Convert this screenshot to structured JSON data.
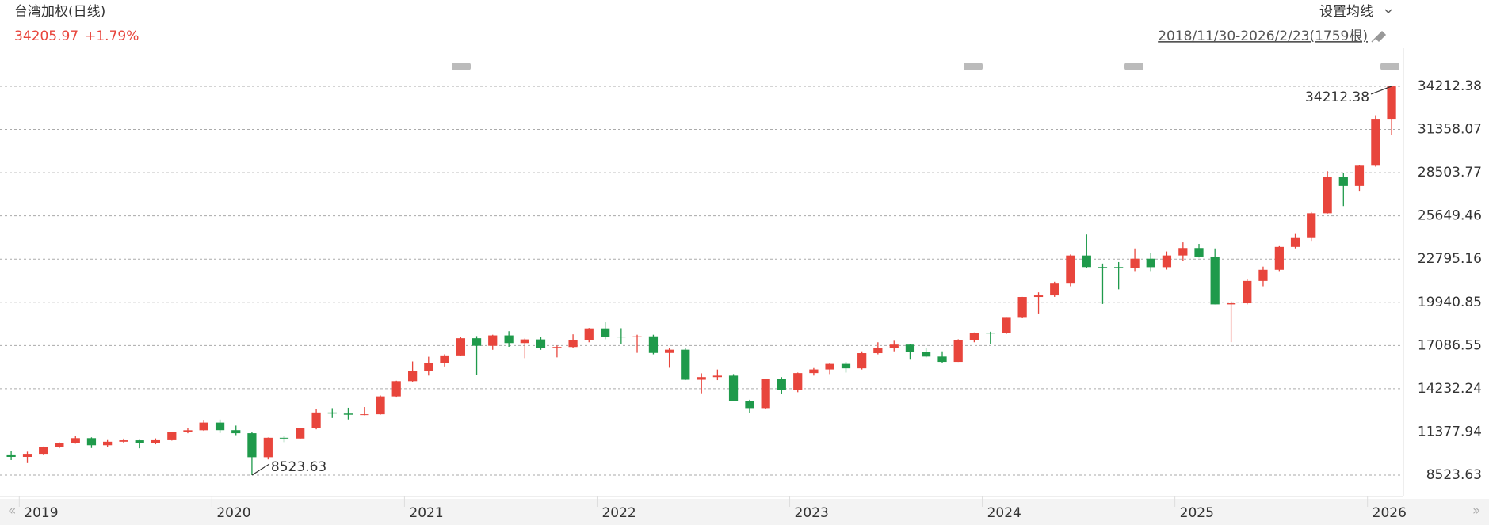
{
  "chart_data": {
    "type": "candlestick",
    "title": "台湾加权(日线)",
    "quote": {
      "price": 34205.97,
      "change": {
        "value": 1.79,
        "label": "+1.79%"
      }
    },
    "button": "设置均线",
    "range_label": "2018/11/30-2026/2/23(1759根)",
    "up_color": "#e8453c",
    "down_color": "#1f9a4b",
    "x": [
      2018.958,
      2019.042,
      2019.125,
      2019.208,
      2019.292,
      2019.375,
      2019.458,
      2019.542,
      2019.625,
      2019.708,
      2019.792,
      2019.875,
      2019.958,
      2020.042,
      2020.125,
      2020.208,
      2020.292,
      2020.375,
      2020.458,
      2020.542,
      2020.625,
      2020.708,
      2020.792,
      2020.875,
      2020.958,
      2021.042,
      2021.125,
      2021.208,
      2021.292,
      2021.375,
      2021.458,
      2021.542,
      2021.625,
      2021.708,
      2021.792,
      2021.875,
      2021.958,
      2022.042,
      2022.125,
      2022.208,
      2022.292,
      2022.375,
      2022.458,
      2022.542,
      2022.625,
      2022.708,
      2022.792,
      2022.875,
      2022.958,
      2023.042,
      2023.125,
      2023.208,
      2023.292,
      2023.375,
      2023.458,
      2023.542,
      2023.625,
      2023.708,
      2023.792,
      2023.875,
      2023.958,
      2024.042,
      2024.125,
      2024.208,
      2024.292,
      2024.375,
      2024.458,
      2024.542,
      2024.625,
      2024.708,
      2024.792,
      2024.875,
      2024.958,
      2025.042,
      2025.125,
      2025.208,
      2025.292,
      2025.375,
      2025.458,
      2025.542,
      2025.625,
      2025.708,
      2025.792,
      2025.875,
      2025.958,
      2026.042,
      2026.125
    ],
    "open": [
      9888,
      9727,
      9932,
      10389,
      10641,
      10967,
      10498,
      10730,
      10823,
      10618,
      10829,
      11358,
      11489,
      11997,
      11495,
      11292,
      9708,
      10992,
      10943,
      11621,
      12665,
      12592,
      12516,
      12546,
      13723,
      14733,
      15411,
      15953,
      16431,
      17567,
      17068,
      17755,
      17247,
      17490,
      16935,
      16987,
      17428,
      18219,
      17674,
      17652,
      17693,
      16593,
      16808,
      14826,
      15000,
      15096,
      13425,
      12950,
      14880,
      14138,
      15266,
      15504,
      15869,
      15579,
      16579,
      16916,
      17146,
      16634,
      16354,
      16002,
      17433,
      17931,
      17890,
      18966,
      20294,
      20397,
      21175,
      23033,
      22269,
      22268,
      22225,
      22821,
      22263,
      23035,
      23526,
      22964,
      19803,
      19875,
      21348,
      22085,
      23600,
      24233,
      25822,
      28234,
      27626,
      28964,
      32063
    ],
    "high": [
      10106,
      10075,
      10412,
      10690,
      11096,
      11021,
      10840,
      10936,
      10841,
      10951,
      11386,
      11616,
      12126,
      12197,
      11798,
      11390,
      11010,
      11095,
      11651,
      12891,
      12948,
      12974,
      13022,
      13782,
      14760,
      16031,
      16341,
      16505,
      17633,
      17709,
      17800,
      18034,
      17552,
      17661,
      17086,
      17827,
      18248,
      18619,
      18231,
      17800,
      17800,
      16900,
      16900,
      15250,
      15500,
      15200,
      13500,
      14900,
      15000,
      15300,
      15600,
      15900,
      16000,
      16700,
      17300,
      17400,
      17200,
      16900,
      16700,
      17500,
      17950,
      18000,
      18970,
      20300,
      20600,
      21300,
      23100,
      24417,
      22500,
      22600,
      23500,
      23200,
      23300,
      23900,
      23800,
      23500,
      20000,
      21500,
      22300,
      23650,
      24500,
      25900,
      28600,
      28500,
      29000,
      32300,
      34212.38
    ],
    "low": [
      9519,
      9319,
      9900,
      10300,
      10600,
      10314,
      10400,
      10645,
      10296,
      10560,
      10805,
      11290,
      11450,
      11310,
      11165,
      8523.63,
      9560,
      10700,
      10900,
      11550,
      12300,
      12200,
      12480,
      12520,
      13700,
      14700,
      15100,
      15700,
      16420,
      15160,
      16800,
      17000,
      16249,
      16800,
      16300,
      16900,
      17300,
      17500,
      17200,
      16600,
      16500,
      15616,
      14800,
      13928,
      14800,
      13410,
      12629,
      12870,
      13900,
      14000,
      15100,
      15200,
      15300,
      15500,
      16500,
      16700,
      16200,
      16300,
      15950,
      16000,
      17300,
      17200,
      17850,
      18900,
      19200,
      20300,
      21000,
      22200,
      19830,
      20800,
      22000,
      22000,
      22100,
      22700,
      22900,
      19800,
      17307,
      19800,
      21000,
      22000,
      23500,
      24000,
      25800,
      26300,
      27300,
      28900,
      31000
    ],
    "close": [
      9727,
      9932,
      10389,
      10641,
      10967,
      10498,
      10730,
      10823,
      10618,
      10829,
      11358,
      11489,
      11997,
      11495,
      11292,
      9708,
      10992,
      10943,
      11621,
      12665,
      12592,
      12516,
      12546,
      13723,
      14733,
      15411,
      15953,
      16431,
      17567,
      17068,
      17755,
      17247,
      17490,
      16935,
      16987,
      17428,
      18219,
      17674,
      17652,
      17693,
      16593,
      16808,
      14826,
      15000,
      15096,
      13425,
      12950,
      14880,
      14138,
      15266,
      15504,
      15869,
      15579,
      16579,
      16916,
      17146,
      16634,
      16354,
      16002,
      17433,
      17931,
      17890,
      18966,
      20294,
      20397,
      21175,
      23033,
      22269,
      22268,
      22225,
      22821,
      22263,
      23035,
      23526,
      22964,
      19803,
      19875,
      21348,
      22085,
      23600,
      24233,
      25822,
      28234,
      27626,
      28964,
      32063,
      34205.97
    ],
    "xlim": [
      2018.9,
      2026.17
    ],
    "xticks": [
      2019,
      2020,
      2021,
      2022,
      2023,
      2024,
      2025,
      2026
    ],
    "ylim": [
      7216,
      35467
    ],
    "yticks": [
      8523.63,
      11377.94,
      14232.24,
      17086.55,
      19940.85,
      22795.16,
      25649.46,
      28503.77,
      31358.07,
      34212.38
    ],
    "grid": true,
    "annotations": [
      {
        "x": 2026.125,
        "y": 34212.38,
        "side": "left"
      },
      {
        "x": 2020.208,
        "y": 8523.63,
        "side": "right"
      }
    ]
  }
}
